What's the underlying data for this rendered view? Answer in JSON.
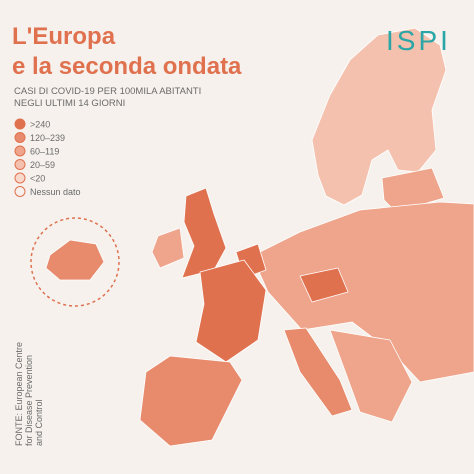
{
  "header": {
    "title": [
      "L'Europa",
      "e la seconda ondata"
    ],
    "subtitle": [
      "CASI DI COVID-19 PER 100MILA ABITANTI",
      "NEGLI ULTIMI 14 GIORNI"
    ],
    "logo": "ISPI"
  },
  "legend": [
    {
      "label": ">240",
      "color": "#e0714f"
    },
    {
      "label": "120–239",
      "color": "#e88a6c"
    },
    {
      "label": "60–119",
      "color": "#efa58c"
    },
    {
      "label": "20–59",
      "color": "#f4c1ae"
    },
    {
      "label": "<20",
      "color": "#f8d9cc"
    },
    {
      "label": "Nessun dato",
      "color": "#f6f1ec"
    }
  ],
  "source": [
    "FONTE: European Centre",
    "for Disease Prevention",
    "and Control"
  ]
}
